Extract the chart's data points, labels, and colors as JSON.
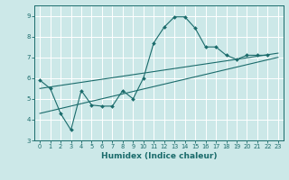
{
  "title": "",
  "xlabel": "Humidex (Indice chaleur)",
  "bg_color": "#cce8e8",
  "grid_color": "#ffffff",
  "line_color": "#1a6b6b",
  "xlim": [
    -0.5,
    23.5
  ],
  "ylim": [
    3,
    9.5
  ],
  "xticks": [
    0,
    1,
    2,
    3,
    4,
    5,
    6,
    7,
    8,
    9,
    10,
    11,
    12,
    13,
    14,
    15,
    16,
    17,
    18,
    19,
    20,
    21,
    22,
    23
  ],
  "yticks": [
    3,
    4,
    5,
    6,
    7,
    8,
    9
  ],
  "series1_x": [
    0,
    1,
    2,
    3,
    4,
    5,
    6,
    7,
    8,
    9,
    10,
    11,
    12,
    13,
    14,
    15,
    16,
    17,
    18,
    19,
    20,
    21,
    22
  ],
  "series1_y": [
    5.9,
    5.5,
    4.3,
    3.5,
    5.4,
    4.7,
    4.65,
    4.65,
    5.4,
    5.0,
    6.0,
    7.7,
    8.45,
    8.95,
    8.95,
    8.4,
    7.5,
    7.5,
    7.1,
    6.9,
    7.1,
    7.1,
    7.1
  ],
  "series2_x": [
    0,
    23
  ],
  "series2_y": [
    5.5,
    7.2
  ],
  "series3_x": [
    0,
    23
  ],
  "series3_y": [
    4.3,
    7.0
  ]
}
